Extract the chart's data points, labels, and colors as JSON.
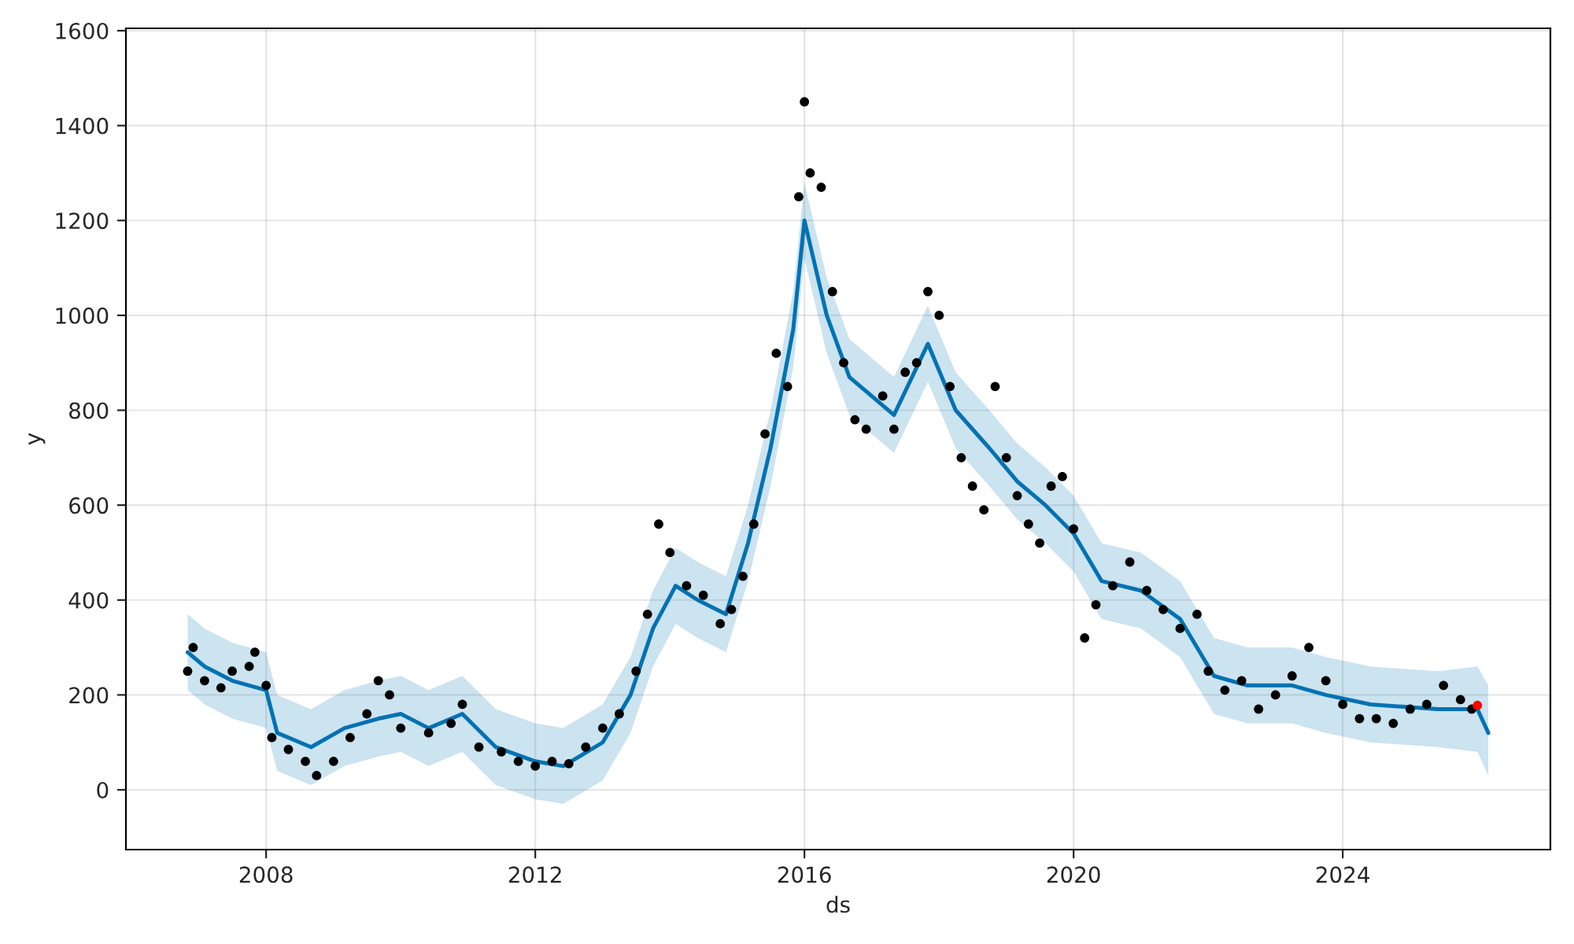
{
  "chart_data": {
    "type": "scatter",
    "xlabel": "ds",
    "ylabel": "y",
    "xlim": [
      "2005-12",
      "2027-02"
    ],
    "xticks": [
      "2008",
      "2012",
      "2016",
      "2020",
      "2024"
    ],
    "ylim": [
      -126,
      1605
    ],
    "yticks": [
      0,
      200,
      400,
      600,
      800,
      1000,
      1200,
      1400,
      1600
    ],
    "grid": true,
    "series": [
      {
        "marker": "circle",
        "color": "#000000",
        "x": [
          "2006-11",
          "2006-12",
          "2007-02",
          "2007-05",
          "2007-07",
          "2007-10",
          "2007-11",
          "2008-01",
          "2008-02",
          "2008-05",
          "2008-08",
          "2008-10",
          "2009-01",
          "2009-04",
          "2009-07",
          "2009-09",
          "2009-11",
          "2010-01",
          "2010-06",
          "2010-10",
          "2010-12",
          "2011-03",
          "2011-07",
          "2011-10",
          "2012-01",
          "2012-04",
          "2012-07",
          "2012-10",
          "2013-01",
          "2013-04",
          "2013-07",
          "2013-09",
          "2013-11",
          "2014-01",
          "2014-04",
          "2014-07",
          "2014-10",
          "2014-12",
          "2015-02",
          "2015-04",
          "2015-06",
          "2015-08",
          "2015-10",
          "2015-12",
          "2016-01",
          "2016-02",
          "2016-04",
          "2016-06",
          "2016-08",
          "2016-10",
          "2016-12",
          "2017-03",
          "2017-05",
          "2017-07",
          "2017-09",
          "2017-11",
          "2018-01",
          "2018-03",
          "2018-05",
          "2018-07",
          "2018-09",
          "2018-11",
          "2019-01",
          "2019-03",
          "2019-05",
          "2019-07",
          "2019-09",
          "2019-11",
          "2020-01",
          "2020-03",
          "2020-05",
          "2020-08",
          "2020-11",
          "2021-02",
          "2021-05",
          "2021-08",
          "2021-11",
          "2022-01",
          "2022-04",
          "2022-07",
          "2022-10",
          "2023-01",
          "2023-04",
          "2023-07",
          "2023-10",
          "2024-01",
          "2024-04",
          "2024-07",
          "2024-10",
          "2025-01",
          "2025-04",
          "2025-07",
          "2025-10",
          "2025-12"
        ],
        "values": [
          250,
          300,
          230,
          215,
          250,
          260,
          290,
          220,
          110,
          85,
          60,
          30,
          60,
          110,
          160,
          230,
          200,
          130,
          120,
          140,
          180,
          90,
          80,
          60,
          50,
          60,
          55,
          90,
          130,
          160,
          250,
          370,
          560,
          500,
          430,
          410,
          350,
          380,
          450,
          560,
          750,
          920,
          850,
          1250,
          1450,
          1300,
          1270,
          1050,
          900,
          780,
          760,
          830,
          760,
          880,
          900,
          1050,
          1000,
          850,
          700,
          640,
          590,
          850,
          700,
          620,
          560,
          520,
          640,
          660,
          550,
          320,
          390,
          430,
          480,
          420,
          380,
          340,
          370,
          250,
          210,
          230,
          170,
          200,
          240,
          300,
          230,
          180,
          150,
          150,
          140,
          170,
          180,
          220,
          190,
          170
        ]
      },
      {
        "marker": "circle",
        "color": "#ff0000",
        "x": [
          "2026-01"
        ],
        "values": [
          178
        ]
      },
      {
        "type": "line",
        "color": "#0072b2",
        "x": [
          "2006-11",
          "2007-02",
          "2007-07",
          "2008-01",
          "2008-03",
          "2008-09",
          "2009-03",
          "2009-09",
          "2010-01",
          "2010-06",
          "2010-12",
          "2011-06",
          "2012-01",
          "2012-06",
          "2013-01",
          "2013-06",
          "2013-10",
          "2014-02",
          "2014-06",
          "2014-11",
          "2015-03",
          "2015-07",
          "2015-11",
          "2016-01",
          "2016-05",
          "2016-09",
          "2017-05",
          "2017-11",
          "2018-04",
          "2018-10",
          "2019-03",
          "2019-08",
          "2020-01",
          "2020-06",
          "2021-01",
          "2021-08",
          "2022-02",
          "2022-08",
          "2023-04",
          "2023-10",
          "2024-06",
          "2025-06",
          "2026-01",
          "2026-03"
        ],
        "values": [
          290,
          260,
          230,
          210,
          120,
          90,
          130,
          150,
          160,
          130,
          160,
          90,
          60,
          50,
          100,
          200,
          340,
          430,
          400,
          370,
          520,
          720,
          970,
          1200,
          1000,
          870,
          790,
          940,
          800,
          720,
          650,
          600,
          540,
          440,
          420,
          360,
          240,
          220,
          220,
          200,
          180,
          170,
          170,
          120
        ],
        "lower": [
          210,
          180,
          150,
          130,
          40,
          10,
          50,
          70,
          80,
          50,
          80,
          10,
          -20,
          -30,
          20,
          120,
          260,
          350,
          320,
          290,
          440,
          640,
          890,
          1120,
          920,
          790,
          710,
          860,
          720,
          640,
          570,
          520,
          460,
          360,
          340,
          280,
          160,
          140,
          140,
          120,
          100,
          90,
          80,
          30
        ],
        "upper": [
          370,
          340,
          310,
          290,
          200,
          170,
          210,
          230,
          240,
          210,
          240,
          170,
          140,
          130,
          180,
          280,
          420,
          510,
          480,
          450,
          600,
          800,
          1050,
          1280,
          1080,
          950,
          870,
          1020,
          880,
          800,
          730,
          680,
          620,
          520,
          500,
          440,
          320,
          300,
          300,
          280,
          260,
          250,
          260,
          220
        ]
      }
    ]
  }
}
